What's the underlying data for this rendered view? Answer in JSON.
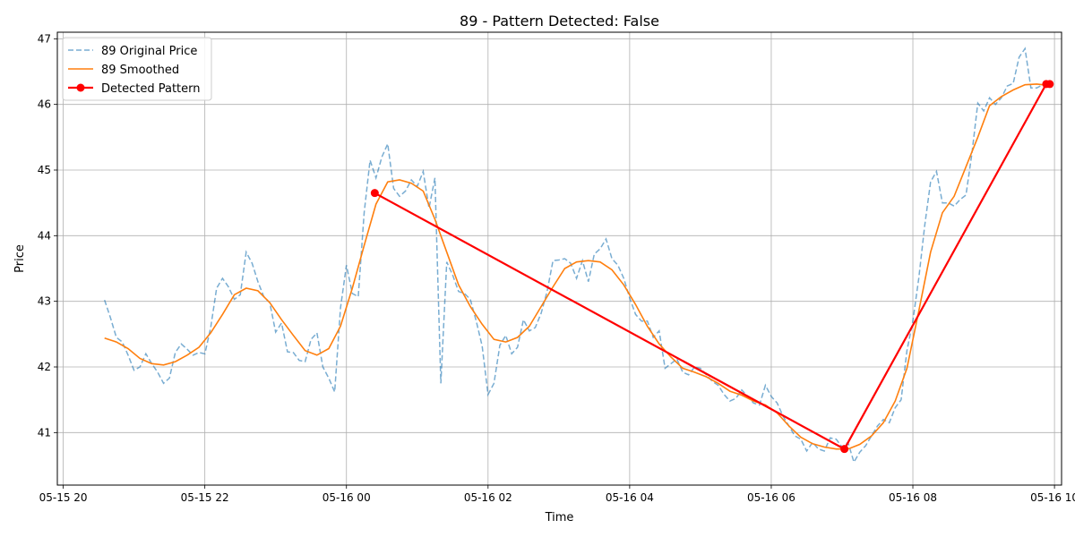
{
  "chart_data": {
    "type": "line",
    "title": "89 - Pattern Detected: False",
    "xlabel": "Time",
    "ylabel": "Price",
    "x_ticks": [
      {
        "t": "2023-05-15T20:00",
        "label": "05-15 20"
      },
      {
        "t": "2023-05-15T22:00",
        "label": "05-15 22"
      },
      {
        "t": "2023-05-16T00:00",
        "label": "05-16 00"
      },
      {
        "t": "2023-05-16T02:00",
        "label": "05-16 02"
      },
      {
        "t": "2023-05-16T04:00",
        "label": "05-16 04"
      },
      {
        "t": "2023-05-16T06:00",
        "label": "05-16 06"
      },
      {
        "t": "2023-05-16T08:00",
        "label": "05-16 08"
      },
      {
        "t": "2023-05-16T10:00",
        "label": "05-16 10"
      }
    ],
    "y_ticks": [
      41,
      42,
      43,
      44,
      45,
      46,
      47
    ],
    "xlim": [
      "2023-05-15T19:55",
      "2023-05-16T10:06"
    ],
    "ylim": [
      40.2,
      47.1
    ],
    "grid": true,
    "legend_position": "upper-left",
    "series": [
      {
        "name": "89 Original Price",
        "color": "#1f77b4",
        "style": "dashed",
        "points": [
          [
            "2023-05-15T20:35",
            43.02
          ],
          [
            "2023-05-15T20:40",
            42.75
          ],
          [
            "2023-05-15T20:45",
            42.45
          ],
          [
            "2023-05-15T20:50",
            42.38
          ],
          [
            "2023-05-15T20:55",
            42.18
          ],
          [
            "2023-05-15T21:00",
            41.95
          ],
          [
            "2023-05-15T21:05",
            42.0
          ],
          [
            "2023-05-15T21:10",
            42.2
          ],
          [
            "2023-05-15T21:15",
            42.05
          ],
          [
            "2023-05-15T21:20",
            41.92
          ],
          [
            "2023-05-15T21:25",
            41.75
          ],
          [
            "2023-05-15T21:30",
            41.83
          ],
          [
            "2023-05-15T21:35",
            42.22
          ],
          [
            "2023-05-15T21:40",
            42.35
          ],
          [
            "2023-05-15T21:45",
            42.27
          ],
          [
            "2023-05-15T21:50",
            42.18
          ],
          [
            "2023-05-15T21:55",
            42.22
          ],
          [
            "2023-05-15T22:00",
            42.2
          ],
          [
            "2023-05-15T22:05",
            42.6
          ],
          [
            "2023-05-15T22:10",
            43.2
          ],
          [
            "2023-05-15T22:15",
            43.35
          ],
          [
            "2023-05-15T22:20",
            43.22
          ],
          [
            "2023-05-15T22:25",
            43.03
          ],
          [
            "2023-05-15T22:30",
            43.1
          ],
          [
            "2023-05-15T22:35",
            43.75
          ],
          [
            "2023-05-15T22:40",
            43.58
          ],
          [
            "2023-05-15T22:45",
            43.3
          ],
          [
            "2023-05-15T22:50",
            43.07
          ],
          [
            "2023-05-15T22:55",
            42.98
          ],
          [
            "2023-05-15T23:00",
            42.53
          ],
          [
            "2023-05-15T23:05",
            42.67
          ],
          [
            "2023-05-15T23:10",
            42.23
          ],
          [
            "2023-05-15T23:15",
            42.22
          ],
          [
            "2023-05-15T23:20",
            42.1
          ],
          [
            "2023-05-15T23:25",
            42.08
          ],
          [
            "2023-05-15T23:30",
            42.42
          ],
          [
            "2023-05-15T23:35",
            42.52
          ],
          [
            "2023-05-15T23:40",
            42.0
          ],
          [
            "2023-05-15T23:45",
            41.83
          ],
          [
            "2023-05-15T23:50",
            41.62
          ],
          [
            "2023-05-15T23:55",
            42.9
          ],
          [
            "2023-05-16T00:00",
            43.55
          ],
          [
            "2023-05-16T00:05",
            43.12
          ],
          [
            "2023-05-16T00:10",
            43.07
          ],
          [
            "2023-05-16T00:15",
            44.35
          ],
          [
            "2023-05-16T00:20",
            45.15
          ],
          [
            "2023-05-16T00:25",
            44.88
          ],
          [
            "2023-05-16T00:30",
            45.2
          ],
          [
            "2023-05-16T00:35",
            45.4
          ],
          [
            "2023-05-16T00:40",
            44.72
          ],
          [
            "2023-05-16T00:45",
            44.6
          ],
          [
            "2023-05-16T00:50",
            44.68
          ],
          [
            "2023-05-16T00:55",
            44.85
          ],
          [
            "2023-05-16T01:00",
            44.75
          ],
          [
            "2023-05-16T01:05",
            44.98
          ],
          [
            "2023-05-16T01:10",
            44.42
          ],
          [
            "2023-05-16T01:15",
            44.88
          ],
          [
            "2023-05-16T01:20",
            41.75
          ],
          [
            "2023-05-16T01:25",
            43.6
          ],
          [
            "2023-05-16T01:30",
            43.4
          ],
          [
            "2023-05-16T01:35",
            43.15
          ],
          [
            "2023-05-16T01:40",
            43.12
          ],
          [
            "2023-05-16T01:45",
            43.03
          ],
          [
            "2023-05-16T01:50",
            42.7
          ],
          [
            "2023-05-16T01:55",
            42.32
          ],
          [
            "2023-05-16T02:00",
            41.58
          ],
          [
            "2023-05-16T02:05",
            41.75
          ],
          [
            "2023-05-16T02:10",
            42.33
          ],
          [
            "2023-05-16T02:15",
            42.48
          ],
          [
            "2023-05-16T02:20",
            42.2
          ],
          [
            "2023-05-16T02:25",
            42.3
          ],
          [
            "2023-05-16T02:30",
            42.72
          ],
          [
            "2023-05-16T02:35",
            42.55
          ],
          [
            "2023-05-16T02:40",
            42.6
          ],
          [
            "2023-05-16T02:45",
            42.82
          ],
          [
            "2023-05-16T02:50",
            43.15
          ],
          [
            "2023-05-16T02:55",
            43.62
          ],
          [
            "2023-05-16T03:00",
            43.63
          ],
          [
            "2023-05-16T03:05",
            43.65
          ],
          [
            "2023-05-16T03:10",
            43.58
          ],
          [
            "2023-05-16T03:15",
            43.35
          ],
          [
            "2023-05-16T03:20",
            43.62
          ],
          [
            "2023-05-16T03:25",
            43.3
          ],
          [
            "2023-05-16T03:30",
            43.72
          ],
          [
            "2023-05-16T03:35",
            43.8
          ],
          [
            "2023-05-16T03:40",
            43.95
          ],
          [
            "2023-05-16T03:45",
            43.65
          ],
          [
            "2023-05-16T03:50",
            43.55
          ],
          [
            "2023-05-16T03:55",
            43.35
          ],
          [
            "2023-05-16T04:00",
            43.05
          ],
          [
            "2023-05-16T04:05",
            42.8
          ],
          [
            "2023-05-16T04:10",
            42.7
          ],
          [
            "2023-05-16T04:15",
            42.7
          ],
          [
            "2023-05-16T04:20",
            42.45
          ],
          [
            "2023-05-16T04:25",
            42.55
          ],
          [
            "2023-05-16T04:30",
            41.98
          ],
          [
            "2023-05-16T04:35",
            42.05
          ],
          [
            "2023-05-16T04:40",
            42.12
          ],
          [
            "2023-05-16T04:45",
            41.92
          ],
          [
            "2023-05-16T04:50",
            41.88
          ],
          [
            "2023-05-16T04:55",
            42.0
          ],
          [
            "2023-05-16T05:00",
            41.98
          ],
          [
            "2023-05-16T05:05",
            41.88
          ],
          [
            "2023-05-16T05:10",
            41.78
          ],
          [
            "2023-05-16T05:15",
            41.72
          ],
          [
            "2023-05-16T05:20",
            41.58
          ],
          [
            "2023-05-16T05:25",
            41.48
          ],
          [
            "2023-05-16T05:30",
            41.52
          ],
          [
            "2023-05-16T05:35",
            41.65
          ],
          [
            "2023-05-16T05:40",
            41.55
          ],
          [
            "2023-05-16T05:45",
            41.45
          ],
          [
            "2023-05-16T05:50",
            41.42
          ],
          [
            "2023-05-16T05:55",
            41.72
          ],
          [
            "2023-05-16T06:00",
            41.55
          ],
          [
            "2023-05-16T06:05",
            41.45
          ],
          [
            "2023-05-16T06:10",
            41.25
          ],
          [
            "2023-05-16T06:15",
            41.1
          ],
          [
            "2023-05-16T06:20",
            40.95
          ],
          [
            "2023-05-16T06:25",
            40.9
          ],
          [
            "2023-05-16T06:30",
            40.72
          ],
          [
            "2023-05-16T06:35",
            40.85
          ],
          [
            "2023-05-16T06:40",
            40.75
          ],
          [
            "2023-05-16T06:45",
            40.72
          ],
          [
            "2023-05-16T06:50",
            40.92
          ],
          [
            "2023-05-16T06:55",
            40.9
          ],
          [
            "2023-05-16T07:00",
            40.78
          ],
          [
            "2023-05-16T07:05",
            40.85
          ],
          [
            "2023-05-16T07:10",
            40.55
          ],
          [
            "2023-05-16T07:15",
            40.7
          ],
          [
            "2023-05-16T07:20",
            40.8
          ],
          [
            "2023-05-16T07:25",
            40.95
          ],
          [
            "2023-05-16T07:30",
            41.1
          ],
          [
            "2023-05-16T07:35",
            41.2
          ],
          [
            "2023-05-16T07:40",
            41.15
          ],
          [
            "2023-05-16T07:45",
            41.38
          ],
          [
            "2023-05-16T07:50",
            41.5
          ],
          [
            "2023-05-16T07:55",
            42.25
          ],
          [
            "2023-05-16T08:00",
            42.7
          ],
          [
            "2023-05-16T08:05",
            43.35
          ],
          [
            "2023-05-16T08:10",
            44.15
          ],
          [
            "2023-05-16T08:15",
            44.82
          ],
          [
            "2023-05-16T08:20",
            44.98
          ],
          [
            "2023-05-16T08:25",
            44.5
          ],
          [
            "2023-05-16T08:30",
            44.5
          ],
          [
            "2023-05-16T08:35",
            44.45
          ],
          [
            "2023-05-16T08:40",
            44.55
          ],
          [
            "2023-05-16T08:45",
            44.62
          ],
          [
            "2023-05-16T08:50",
            45.25
          ],
          [
            "2023-05-16T08:55",
            46.02
          ],
          [
            "2023-05-16T09:00",
            45.9
          ],
          [
            "2023-05-16T09:05",
            46.1
          ],
          [
            "2023-05-16T09:10",
            46.0
          ],
          [
            "2023-05-16T09:15",
            46.1
          ],
          [
            "2023-05-16T09:20",
            46.28
          ],
          [
            "2023-05-16T09:25",
            46.32
          ],
          [
            "2023-05-16T09:30",
            46.72
          ],
          [
            "2023-05-16T09:35",
            46.85
          ],
          [
            "2023-05-16T09:40",
            46.25
          ],
          [
            "2023-05-16T09:45",
            46.25
          ],
          [
            "2023-05-16T09:50",
            46.3
          ]
        ]
      },
      {
        "name": "89 Smoothed",
        "color": "#ff7f0e",
        "style": "solid",
        "points": [
          [
            "2023-05-15T20:35",
            42.44
          ],
          [
            "2023-05-15T20:45",
            42.38
          ],
          [
            "2023-05-15T20:55",
            42.28
          ],
          [
            "2023-05-15T21:05",
            42.13
          ],
          [
            "2023-05-15T21:15",
            42.05
          ],
          [
            "2023-05-15T21:25",
            42.03
          ],
          [
            "2023-05-15T21:35",
            42.08
          ],
          [
            "2023-05-15T21:45",
            42.18
          ],
          [
            "2023-05-15T21:55",
            42.3
          ],
          [
            "2023-05-15T22:05",
            42.52
          ],
          [
            "2023-05-15T22:15",
            42.8
          ],
          [
            "2023-05-15T22:25",
            43.1
          ],
          [
            "2023-05-15T22:35",
            43.2
          ],
          [
            "2023-05-15T22:45",
            43.16
          ],
          [
            "2023-05-15T22:55",
            42.98
          ],
          [
            "2023-05-15T23:05",
            42.72
          ],
          [
            "2023-05-15T23:15",
            42.48
          ],
          [
            "2023-05-15T23:25",
            42.25
          ],
          [
            "2023-05-15T23:35",
            42.18
          ],
          [
            "2023-05-15T23:45",
            42.28
          ],
          [
            "2023-05-15T23:55",
            42.62
          ],
          [
            "2023-05-16T00:05",
            43.2
          ],
          [
            "2023-05-16T00:15",
            43.85
          ],
          [
            "2023-05-16T00:25",
            44.48
          ],
          [
            "2023-05-16T00:35",
            44.82
          ],
          [
            "2023-05-16T00:45",
            44.85
          ],
          [
            "2023-05-16T00:55",
            44.8
          ],
          [
            "2023-05-16T01:05",
            44.68
          ],
          [
            "2023-05-16T01:15",
            44.25
          ],
          [
            "2023-05-16T01:25",
            43.75
          ],
          [
            "2023-05-16T01:35",
            43.25
          ],
          [
            "2023-05-16T01:45",
            42.92
          ],
          [
            "2023-05-16T01:55",
            42.65
          ],
          [
            "2023-05-16T02:05",
            42.42
          ],
          [
            "2023-05-16T02:15",
            42.38
          ],
          [
            "2023-05-16T02:25",
            42.45
          ],
          [
            "2023-05-16T02:35",
            42.62
          ],
          [
            "2023-05-16T02:45",
            42.92
          ],
          [
            "2023-05-16T02:55",
            43.22
          ],
          [
            "2023-05-16T03:05",
            43.5
          ],
          [
            "2023-05-16T03:15",
            43.6
          ],
          [
            "2023-05-16T03:25",
            43.62
          ],
          [
            "2023-05-16T03:35",
            43.6
          ],
          [
            "2023-05-16T03:45",
            43.48
          ],
          [
            "2023-05-16T03:55",
            43.25
          ],
          [
            "2023-05-16T04:05",
            42.95
          ],
          [
            "2023-05-16T04:15",
            42.62
          ],
          [
            "2023-05-16T04:25",
            42.35
          ],
          [
            "2023-05-16T04:35",
            42.15
          ],
          [
            "2023-05-16T04:45",
            41.98
          ],
          [
            "2023-05-16T04:55",
            41.92
          ],
          [
            "2023-05-16T05:05",
            41.85
          ],
          [
            "2023-05-16T05:15",
            41.75
          ],
          [
            "2023-05-16T05:25",
            41.63
          ],
          [
            "2023-05-16T05:35",
            41.57
          ],
          [
            "2023-05-16T05:45",
            41.48
          ],
          [
            "2023-05-16T05:55",
            41.42
          ],
          [
            "2023-05-16T06:05",
            41.3
          ],
          [
            "2023-05-16T06:15",
            41.1
          ],
          [
            "2023-05-16T06:25",
            40.93
          ],
          [
            "2023-05-16T06:35",
            40.83
          ],
          [
            "2023-05-16T06:45",
            40.78
          ],
          [
            "2023-05-16T06:55",
            40.75
          ],
          [
            "2023-05-16T07:05",
            40.75
          ],
          [
            "2023-05-16T07:15",
            40.82
          ],
          [
            "2023-05-16T07:25",
            40.95
          ],
          [
            "2023-05-16T07:35",
            41.15
          ],
          [
            "2023-05-16T07:45",
            41.48
          ],
          [
            "2023-05-16T07:55",
            41.98
          ],
          [
            "2023-05-16T08:05",
            42.85
          ],
          [
            "2023-05-16T08:15",
            43.75
          ],
          [
            "2023-05-16T08:25",
            44.35
          ],
          [
            "2023-05-16T08:35",
            44.6
          ],
          [
            "2023-05-16T08:45",
            45.05
          ],
          [
            "2023-05-16T08:55",
            45.5
          ],
          [
            "2023-05-16T09:05",
            45.98
          ],
          [
            "2023-05-16T09:15",
            46.12
          ],
          [
            "2023-05-16T09:25",
            46.22
          ],
          [
            "2023-05-16T09:35",
            46.3
          ],
          [
            "2023-05-16T09:45",
            46.31
          ],
          [
            "2023-05-16T09:50",
            46.3
          ]
        ]
      },
      {
        "name": "Detected Pattern",
        "color": "#ff0000",
        "style": "solid-markers",
        "points": [
          [
            "2023-05-16T00:24",
            44.65
          ],
          [
            "2023-05-16T07:02",
            40.75
          ],
          [
            "2023-05-16T09:53",
            46.31
          ],
          [
            "2023-05-16T09:56",
            46.31
          ]
        ]
      }
    ]
  }
}
